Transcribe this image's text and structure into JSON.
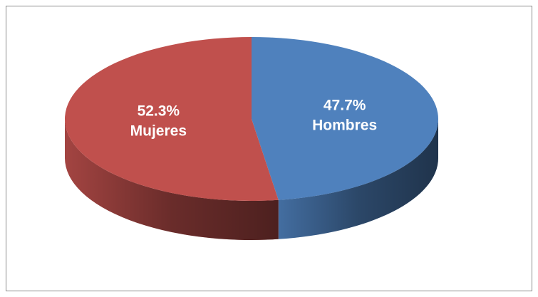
{
  "chart_data": {
    "type": "pie",
    "categories": [
      "Hombres",
      "Mujeres"
    ],
    "values": [
      47.7,
      52.3
    ],
    "value_labels": [
      "47.7%",
      "52.3%"
    ],
    "colors": [
      "#4f81bd",
      "#c0504d"
    ]
  }
}
